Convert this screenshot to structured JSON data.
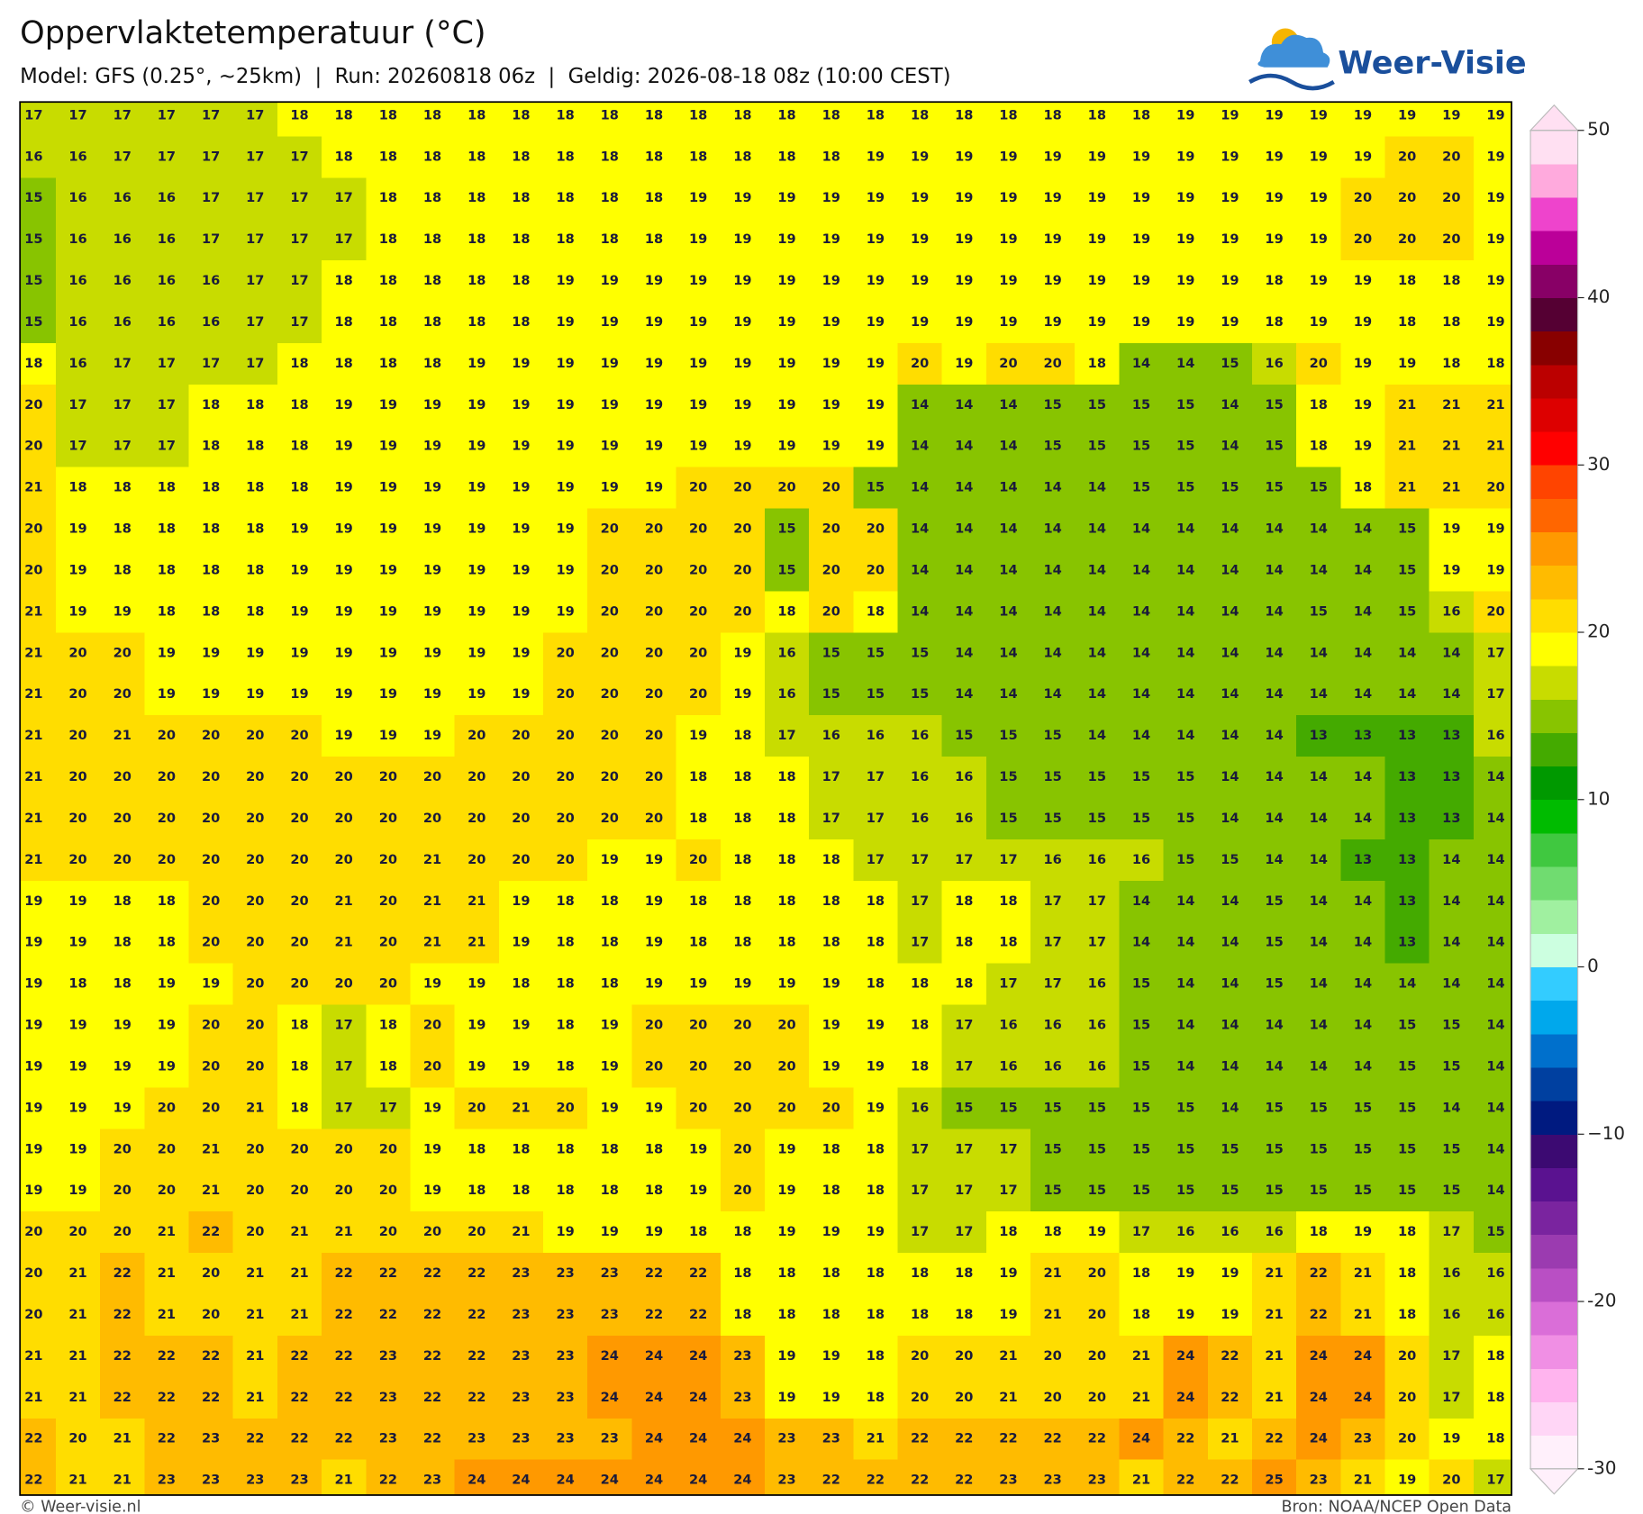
{
  "header": {
    "title": "Oppervlaktetemperatuur (°C)",
    "subtitle": "Model: GFS (0.25°, ~25km)  |  Run: 20260818 06z  |  Geldig: 2026-08-18 08z (10:00 CEST)",
    "logo": "Weer-Visie"
  },
  "map": {
    "grid": [
      [
        17,
        17,
        17,
        17,
        17,
        17,
        18,
        18,
        18,
        18,
        18,
        18,
        18,
        18,
        18,
        18,
        18,
        18,
        18,
        18,
        18,
        18,
        18,
        18,
        18,
        18,
        19,
        19,
        19,
        19,
        19,
        19,
        19,
        19
      ],
      [
        16,
        16,
        17,
        17,
        17,
        17,
        17,
        18,
        18,
        18,
        18,
        18,
        18,
        18,
        18,
        18,
        18,
        18,
        18,
        19,
        19,
        19,
        19,
        19,
        19,
        19,
        19,
        19,
        19,
        19,
        19,
        20,
        20,
        19
      ],
      [
        15,
        16,
        16,
        16,
        17,
        17,
        17,
        17,
        18,
        18,
        18,
        18,
        18,
        18,
        18,
        19,
        19,
        19,
        19,
        19,
        19,
        19,
        19,
        19,
        19,
        19,
        19,
        19,
        19,
        19,
        20,
        20,
        20,
        19
      ],
      [
        15,
        16,
        16,
        16,
        17,
        17,
        17,
        17,
        18,
        18,
        18,
        18,
        18,
        18,
        18,
        19,
        19,
        19,
        19,
        19,
        19,
        19,
        19,
        19,
        19,
        19,
        19,
        19,
        19,
        19,
        20,
        20,
        20,
        19
      ],
      [
        15,
        16,
        16,
        16,
        16,
        17,
        17,
        18,
        18,
        18,
        18,
        18,
        19,
        19,
        19,
        19,
        19,
        19,
        19,
        19,
        19,
        19,
        19,
        19,
        19,
        19,
        19,
        19,
        18,
        19,
        19,
        18,
        18,
        19
      ],
      [
        15,
        16,
        16,
        16,
        16,
        17,
        17,
        18,
        18,
        18,
        18,
        18,
        19,
        19,
        19,
        19,
        19,
        19,
        19,
        19,
        19,
        19,
        19,
        19,
        19,
        19,
        19,
        19,
        18,
        19,
        19,
        18,
        18,
        19
      ],
      [
        18,
        16,
        17,
        17,
        17,
        17,
        18,
        18,
        18,
        18,
        19,
        19,
        19,
        19,
        19,
        19,
        19,
        19,
        19,
        19,
        20,
        19,
        20,
        20,
        18,
        14,
        14,
        15,
        16,
        20,
        19,
        19,
        18,
        18
      ],
      [
        20,
        17,
        17,
        17,
        18,
        18,
        18,
        19,
        19,
        19,
        19,
        19,
        19,
        19,
        19,
        19,
        19,
        19,
        19,
        19,
        14,
        14,
        14,
        15,
        15,
        15,
        15,
        14,
        15,
        18,
        19,
        21,
        21,
        21
      ],
      [
        20,
        17,
        17,
        17,
        18,
        18,
        18,
        19,
        19,
        19,
        19,
        19,
        19,
        19,
        19,
        19,
        19,
        19,
        19,
        19,
        14,
        14,
        14,
        15,
        15,
        15,
        15,
        14,
        15,
        18,
        19,
        21,
        21,
        21
      ],
      [
        21,
        18,
        18,
        18,
        18,
        18,
        18,
        19,
        19,
        19,
        19,
        19,
        19,
        19,
        19,
        20,
        20,
        20,
        20,
        15,
        14,
        14,
        14,
        14,
        14,
        15,
        15,
        15,
        15,
        15,
        18,
        21,
        21,
        20
      ],
      [
        20,
        19,
        18,
        18,
        18,
        18,
        19,
        19,
        19,
        19,
        19,
        19,
        19,
        20,
        20,
        20,
        20,
        15,
        20,
        20,
        14,
        14,
        14,
        14,
        14,
        14,
        14,
        14,
        14,
        14,
        14,
        15,
        19,
        19
      ],
      [
        20,
        19,
        18,
        18,
        18,
        18,
        19,
        19,
        19,
        19,
        19,
        19,
        19,
        20,
        20,
        20,
        20,
        15,
        20,
        20,
        14,
        14,
        14,
        14,
        14,
        14,
        14,
        14,
        14,
        14,
        14,
        15,
        19,
        19
      ],
      [
        21,
        19,
        19,
        18,
        18,
        18,
        19,
        19,
        19,
        19,
        19,
        19,
        19,
        20,
        20,
        20,
        20,
        18,
        20,
        18,
        14,
        14,
        14,
        14,
        14,
        14,
        14,
        14,
        14,
        15,
        14,
        15,
        16,
        20
      ],
      [
        21,
        20,
        20,
        19,
        19,
        19,
        19,
        19,
        19,
        19,
        19,
        19,
        20,
        20,
        20,
        20,
        19,
        16,
        15,
        15,
        15,
        14,
        14,
        14,
        14,
        14,
        14,
        14,
        14,
        14,
        14,
        14,
        14,
        17
      ],
      [
        21,
        20,
        20,
        19,
        19,
        19,
        19,
        19,
        19,
        19,
        19,
        19,
        20,
        20,
        20,
        20,
        19,
        16,
        15,
        15,
        15,
        14,
        14,
        14,
        14,
        14,
        14,
        14,
        14,
        14,
        14,
        14,
        14,
        17
      ],
      [
        21,
        20,
        21,
        20,
        20,
        20,
        20,
        19,
        19,
        19,
        20,
        20,
        20,
        20,
        20,
        19,
        18,
        17,
        16,
        16,
        16,
        15,
        15,
        15,
        14,
        14,
        14,
        14,
        14,
        13,
        13,
        13,
        13,
        16
      ],
      [
        21,
        20,
        20,
        20,
        20,
        20,
        20,
        20,
        20,
        20,
        20,
        20,
        20,
        20,
        20,
        18,
        18,
        18,
        17,
        17,
        16,
        16,
        15,
        15,
        15,
        15,
        15,
        14,
        14,
        14,
        14,
        13,
        13,
        14
      ],
      [
        21,
        20,
        20,
        20,
        20,
        20,
        20,
        20,
        20,
        20,
        20,
        20,
        20,
        20,
        20,
        18,
        18,
        18,
        17,
        17,
        16,
        16,
        15,
        15,
        15,
        15,
        15,
        14,
        14,
        14,
        14,
        13,
        13,
        14
      ],
      [
        21,
        20,
        20,
        20,
        20,
        20,
        20,
        20,
        20,
        21,
        20,
        20,
        20,
        19,
        19,
        20,
        18,
        18,
        18,
        17,
        17,
        17,
        17,
        16,
        16,
        16,
        15,
        15,
        14,
        14,
        13,
        13,
        14,
        14
      ],
      [
        19,
        19,
        18,
        18,
        20,
        20,
        20,
        21,
        20,
        21,
        21,
        19,
        18,
        18,
        19,
        18,
        18,
        18,
        18,
        18,
        17,
        18,
        18,
        17,
        17,
        14,
        14,
        14,
        15,
        14,
        14,
        13,
        14,
        14
      ],
      [
        19,
        19,
        18,
        18,
        20,
        20,
        20,
        21,
        20,
        21,
        21,
        19,
        18,
        18,
        19,
        18,
        18,
        18,
        18,
        18,
        17,
        18,
        18,
        17,
        17,
        14,
        14,
        14,
        15,
        14,
        14,
        13,
        14,
        14
      ],
      [
        19,
        18,
        18,
        19,
        19,
        20,
        20,
        20,
        20,
        19,
        19,
        18,
        18,
        18,
        19,
        19,
        19,
        19,
        19,
        18,
        18,
        18,
        17,
        17,
        16,
        15,
        14,
        14,
        15,
        14,
        14,
        14,
        14,
        14
      ],
      [
        19,
        19,
        19,
        19,
        20,
        20,
        18,
        17,
        18,
        20,
        19,
        19,
        18,
        19,
        20,
        20,
        20,
        20,
        19,
        19,
        18,
        17,
        16,
        16,
        16,
        15,
        14,
        14,
        14,
        14,
        14,
        15,
        15,
        14
      ],
      [
        19,
        19,
        19,
        19,
        20,
        20,
        18,
        17,
        18,
        20,
        19,
        19,
        18,
        19,
        20,
        20,
        20,
        20,
        19,
        19,
        18,
        17,
        16,
        16,
        16,
        15,
        14,
        14,
        14,
        14,
        14,
        15,
        15,
        14
      ],
      [
        19,
        19,
        19,
        20,
        20,
        21,
        18,
        17,
        17,
        19,
        20,
        21,
        20,
        19,
        19,
        20,
        20,
        20,
        20,
        19,
        16,
        15,
        15,
        15,
        15,
        15,
        15,
        14,
        15,
        15,
        15,
        15,
        14,
        14
      ],
      [
        19,
        19,
        20,
        20,
        21,
        20,
        20,
        20,
        20,
        19,
        18,
        18,
        18,
        18,
        18,
        19,
        20,
        19,
        18,
        18,
        17,
        17,
        17,
        15,
        15,
        15,
        15,
        15,
        15,
        15,
        15,
        15,
        15,
        14
      ],
      [
        19,
        19,
        20,
        20,
        21,
        20,
        20,
        20,
        20,
        19,
        18,
        18,
        18,
        18,
        18,
        19,
        20,
        19,
        18,
        18,
        17,
        17,
        17,
        15,
        15,
        15,
        15,
        15,
        15,
        15,
        15,
        15,
        15,
        14
      ],
      [
        20,
        20,
        20,
        21,
        22,
        20,
        21,
        21,
        20,
        20,
        20,
        21,
        19,
        19,
        19,
        18,
        18,
        19,
        19,
        19,
        17,
        17,
        18,
        18,
        19,
        17,
        16,
        16,
        16,
        18,
        19,
        18,
        17,
        15
      ],
      [
        20,
        21,
        22,
        21,
        20,
        21,
        21,
        22,
        22,
        22,
        22,
        23,
        23,
        23,
        22,
        22,
        18,
        18,
        18,
        18,
        18,
        18,
        19,
        21,
        20,
        18,
        19,
        19,
        21,
        22,
        21,
        18,
        16,
        16
      ],
      [
        20,
        21,
        22,
        21,
        20,
        21,
        21,
        22,
        22,
        22,
        22,
        23,
        23,
        23,
        22,
        22,
        18,
        18,
        18,
        18,
        18,
        18,
        19,
        21,
        20,
        18,
        19,
        19,
        21,
        22,
        21,
        18,
        16,
        16
      ],
      [
        21,
        21,
        22,
        22,
        22,
        21,
        22,
        22,
        23,
        22,
        22,
        23,
        23,
        24,
        24,
        24,
        23,
        19,
        19,
        18,
        20,
        20,
        21,
        20,
        20,
        21,
        24,
        22,
        21,
        24,
        24,
        20,
        17,
        18
      ],
      [
        21,
        21,
        22,
        22,
        22,
        21,
        22,
        22,
        23,
        22,
        22,
        23,
        23,
        24,
        24,
        24,
        23,
        19,
        19,
        18,
        20,
        20,
        21,
        20,
        20,
        21,
        24,
        22,
        21,
        24,
        24,
        20,
        17,
        18
      ],
      [
        22,
        20,
        21,
        22,
        23,
        22,
        22,
        22,
        23,
        22,
        23,
        23,
        23,
        23,
        24,
        24,
        24,
        23,
        23,
        21,
        22,
        22,
        22,
        22,
        22,
        24,
        22,
        21,
        22,
        24,
        23,
        20,
        19,
        18
      ],
      [
        22,
        21,
        21,
        23,
        23,
        23,
        23,
        21,
        22,
        23,
        24,
        24,
        24,
        24,
        24,
        24,
        24,
        23,
        22,
        22,
        22,
        22,
        23,
        23,
        23,
        21,
        22,
        22,
        25,
        23,
        21,
        19,
        20,
        17
      ]
    ]
  },
  "colorbar": {
    "clim": [
      -30,
      50
    ],
    "ticks": [
      -30,
      -20,
      {
        "value": -10,
        "label": "−10"
      },
      0,
      10,
      20,
      30,
      40,
      50
    ],
    "colors": [
      "#fff0fb",
      "#ffd6f6",
      "#ffb4ee",
      "#f08fe4",
      "#da6ed8",
      "#b94fc4",
      "#9b3bb0",
      "#7a249f",
      "#5a1290",
      "#3c0a72",
      "#001a80",
      "#0040a0",
      "#0070cc",
      "#00a8ec",
      "#33ccff",
      "#ccffe0",
      "#a0f0a0",
      "#70dc70",
      "#40c840",
      "#00bb00",
      "#009900",
      "#44aa00",
      "#88c400",
      "#c8dc00",
      "#ffff00",
      "#ffdd00",
      "#ffbb00",
      "#ff9900",
      "#ff6600",
      "#ff4400",
      "#ff0000",
      "#dd0000",
      "#bb0000",
      "#880000",
      "#550033",
      "#880066",
      "#bb0099",
      "#ee44cc",
      "#ffaadd",
      "#ffe0f2"
    ]
  },
  "footer": {
    "left": "© Weer-visie.nl",
    "right": "Bron: NOAA/NCEP Open Data"
  }
}
